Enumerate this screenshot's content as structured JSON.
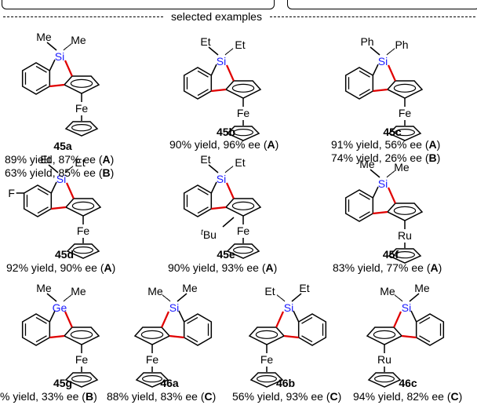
{
  "header": {
    "label": "selected examples"
  },
  "colors": {
    "heteroatom": "#1a1aff",
    "bond_highlight": "#e00000",
    "ink": "#000000"
  },
  "compounds": [
    {
      "id": "45a",
      "substituent": "Me",
      "central": "Si",
      "metal": "Fe",
      "extra": "",
      "results": [
        {
          "text": "89% yield, 87% ee (",
          "cond": "A",
          "close": ")"
        },
        {
          "text": "63% yield, 85% ee (",
          "cond": "B",
          "close": ")"
        }
      ]
    },
    {
      "id": "45b",
      "substituent": "Et",
      "central": "Si",
      "metal": "Fe",
      "extra": "",
      "results": [
        {
          "text": "90% yield, 96% ee (",
          "cond": "A",
          "close": ")"
        }
      ]
    },
    {
      "id": "45c",
      "substituent": "Ph",
      "central": "Si",
      "metal": "Fe",
      "extra": "",
      "results": [
        {
          "text": "91% yield, 56% ee (",
          "cond": "A",
          "close": ")"
        },
        {
          "text": "74% yield, 26% ee (",
          "cond": "B",
          "close": ")"
        }
      ]
    },
    {
      "id": "45d",
      "substituent": "Et",
      "central": "Si",
      "metal": "Fe",
      "extra": "F",
      "results": [
        {
          "text": "92% yield, 90% ee  (",
          "cond": "A",
          "close": ")"
        }
      ]
    },
    {
      "id": "45e",
      "substituent": "Et",
      "central": "Si",
      "metal": "Fe",
      "extra": "Bu",
      "extra_sup": "t",
      "results": [
        {
          "text": "90% yield, 93% ee (",
          "cond": "A",
          "close": ")"
        }
      ]
    },
    {
      "id": "45f",
      "substituent": "Me",
      "central": "Si",
      "metal": "Ru",
      "extra": "",
      "results": [
        {
          "text": "83% yield, 77% ee (",
          "cond": "A",
          "close": ")"
        }
      ]
    },
    {
      "id": "45g",
      "substituent": "Me",
      "central": "Ge",
      "metal": "Fe",
      "extra": "",
      "results": [
        {
          "text": "% yield, 33% ee (",
          "cond": "B",
          "close": ")"
        }
      ]
    },
    {
      "id": "46a",
      "substituent": "Me",
      "central": "Si",
      "metal": "Fe",
      "extra": "",
      "results": [
        {
          "text": "88% yield, 83% ee  (",
          "cond": "C",
          "close": ")"
        }
      ]
    },
    {
      "id": "46b",
      "substituent": "Et",
      "central": "Si",
      "metal": "Fe",
      "extra": "",
      "results": [
        {
          "text": "56% yield, 93% ee  (",
          "cond": "C",
          "close": ")"
        }
      ]
    },
    {
      "id": "46c",
      "substituent": "Me",
      "central": "Si",
      "metal": "Ru",
      "extra": "",
      "results": [
        {
          "text": "94% yield, 82% ee  (",
          "cond": "C",
          "close": ")"
        }
      ]
    }
  ]
}
